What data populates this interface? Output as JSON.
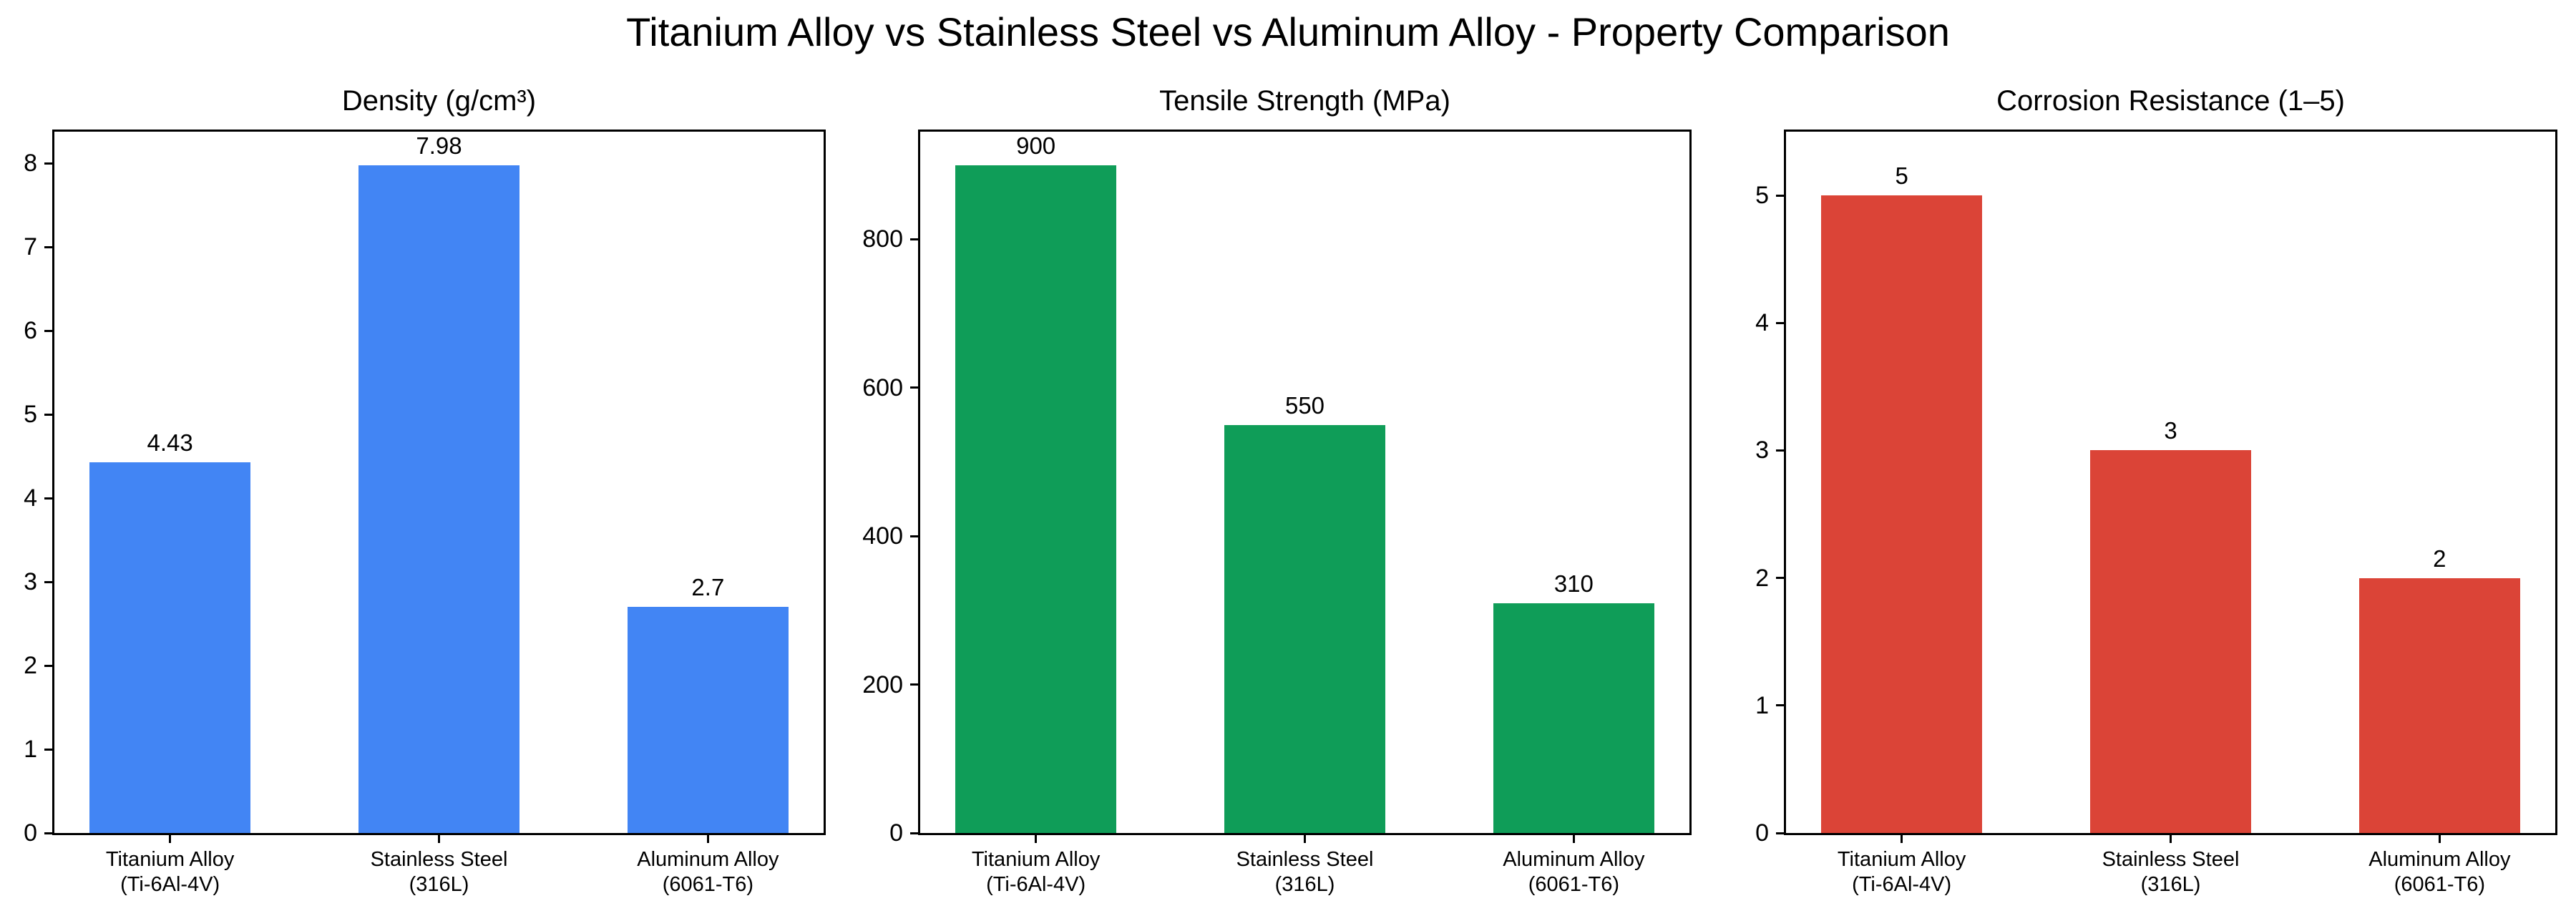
{
  "figure": {
    "title": "Titanium Alloy vs Stainless Steel vs Aluminum Alloy - Property Comparison"
  },
  "chart_data": [
    {
      "type": "bar",
      "title": "Density (g/cm³)",
      "xlabel": "",
      "ylabel": "",
      "categories": [
        "Titanium Alloy (Ti-6Al-4V)",
        "Stainless Steel (316L)",
        "Aluminum Alloy (6061-T6)"
      ],
      "category_lines": [
        [
          "Titanium Alloy",
          "(Ti-6Al-4V)"
        ],
        [
          "Stainless Steel",
          "(316L)"
        ],
        [
          "Aluminum Alloy",
          "(6061-T6)"
        ]
      ],
      "values": [
        4.43,
        7.98,
        2.7
      ],
      "value_labels": [
        "4.43",
        "7.98",
        "2.7"
      ],
      "color": "#4285F4",
      "ylim": [
        0,
        8.38
      ],
      "yticks": [
        0,
        1,
        2,
        3,
        4,
        5,
        6,
        7,
        8
      ],
      "ytick_labels": [
        "0",
        "1",
        "2",
        "3",
        "4",
        "5",
        "6",
        "7",
        "8"
      ],
      "grid": false,
      "legend": null
    },
    {
      "type": "bar",
      "title": "Tensile Strength (MPa)",
      "xlabel": "",
      "ylabel": "",
      "categories": [
        "Titanium Alloy (Ti-6Al-4V)",
        "Stainless Steel (316L)",
        "Aluminum Alloy (6061-T6)"
      ],
      "category_lines": [
        [
          "Titanium Alloy",
          "(Ti-6Al-4V)"
        ],
        [
          "Stainless Steel",
          "(316L)"
        ],
        [
          "Aluminum Alloy",
          "(6061-T6)"
        ]
      ],
      "values": [
        900,
        550,
        310
      ],
      "value_labels": [
        "900",
        "550",
        "310"
      ],
      "color": "#0F9D58",
      "ylim": [
        0,
        945
      ],
      "yticks": [
        0,
        200,
        400,
        600,
        800
      ],
      "ytick_labels": [
        "0",
        "200",
        "400",
        "600",
        "800"
      ],
      "grid": false,
      "legend": null
    },
    {
      "type": "bar",
      "title": "Corrosion Resistance (1–5)",
      "xlabel": "",
      "ylabel": "",
      "categories": [
        "Titanium Alloy (Ti-6Al-4V)",
        "Stainless Steel (316L)",
        "Aluminum Alloy (6061-T6)"
      ],
      "category_lines": [
        [
          "Titanium Alloy",
          "(Ti-6Al-4V)"
        ],
        [
          "Stainless Steel",
          "(316L)"
        ],
        [
          "Aluminum Alloy",
          "(6061-T6)"
        ]
      ],
      "values": [
        5,
        3,
        2
      ],
      "value_labels": [
        "5",
        "3",
        "2"
      ],
      "color": "#DB4437",
      "ylim": [
        0,
        5.5
      ],
      "yticks": [
        0,
        1,
        2,
        3,
        4,
        5
      ],
      "ytick_labels": [
        "0",
        "1",
        "2",
        "3",
        "4",
        "5"
      ],
      "grid": false,
      "legend": null
    }
  ]
}
